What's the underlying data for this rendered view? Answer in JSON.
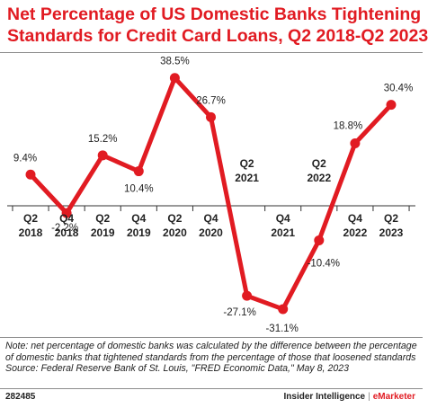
{
  "title": {
    "line1": "Net Percentage of US Domestic Banks Tightening",
    "line2": "Standards for Credit Card Loans, Q2 2018-Q2 2023"
  },
  "chart_data": {
    "type": "line",
    "x": [
      "Q2 2018",
      "Q4 2018",
      "Q2 2019",
      "Q4 2019",
      "Q2 2020",
      "Q4 2020",
      "Q2 2021",
      "Q4 2021",
      "Q2 2022",
      "Q4 2022",
      "Q2 2023"
    ],
    "series": [
      {
        "values": [
          9.4,
          -2.2,
          15.2,
          10.4,
          38.5,
          26.7,
          -27.1,
          -31.1,
          -10.4,
          18.8,
          30.4
        ]
      }
    ],
    "data_labels": [
      "9.4%",
      "-2.2%",
      "15.2%",
      "10.4%",
      "38.5%",
      "26.7%",
      "-27.1%",
      "-31.1%",
      "-10.4%",
      "18.8%",
      "30.4%"
    ],
    "tick_labels": [
      [
        "Q2",
        "2018"
      ],
      [
        "Q4",
        "2018"
      ],
      [
        "Q2",
        "2019"
      ],
      [
        "Q4",
        "2019"
      ],
      [
        "Q2",
        "2020"
      ],
      [
        "Q4",
        "2020"
      ],
      [
        "Q2",
        "2021"
      ],
      [
        "Q4",
        "2021"
      ],
      [
        "Q2",
        "2022"
      ],
      [
        "Q4",
        "2022"
      ],
      [
        "Q2",
        "2023"
      ]
    ],
    "ylim": [
      -40,
      45
    ],
    "grid": false,
    "line_color": "#e11b22"
  },
  "notes": {
    "note": "Note: net percentage of domestic banks was calculated by the difference between the percentage of domestic banks that tightened standards from the percentage of those that loosened standards",
    "source": "Source: Federal Reserve Bank of St. Louis, \"FRED Economic Data,\" May 8, 2023"
  },
  "footer": {
    "id": "282485",
    "brand_left": "Insider Intelligence",
    "separator": "|",
    "brand_right": "eMarketer"
  }
}
